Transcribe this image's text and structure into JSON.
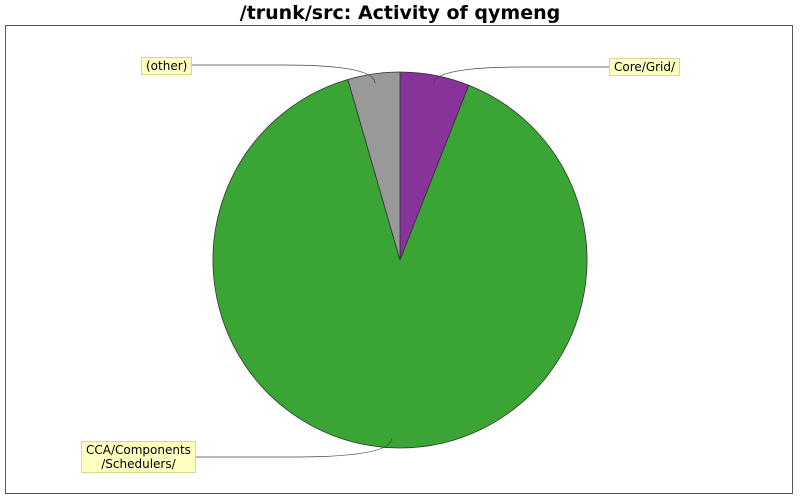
{
  "chart_data": {
    "type": "pie",
    "title": "/trunk/src: Activity of qymeng",
    "slices": [
      {
        "label": "Core/Grid/",
        "value": 6.0,
        "color": "#883399"
      },
      {
        "label": "CCA/Components\n/Schedulers/",
        "value": 89.5,
        "color": "#3aa535"
      },
      {
        "label": "(other)",
        "value": 4.5,
        "color": "#999999"
      }
    ]
  }
}
